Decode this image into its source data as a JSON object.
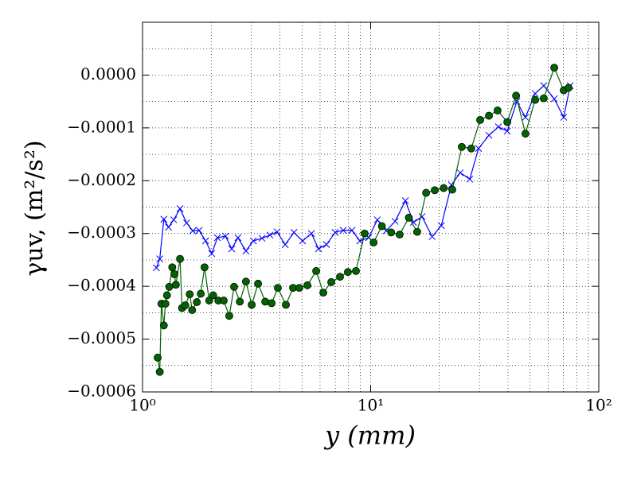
{
  "chart_data": {
    "type": "line",
    "xlabel": "y (mm)",
    "ylabel": "γuv, (m²/s²)",
    "xscale": "log",
    "xlim": [
      1,
      100
    ],
    "xticks": [
      {
        "value": 1,
        "label": "10⁰"
      },
      {
        "value": 10,
        "label": "10¹"
      },
      {
        "value": 100,
        "label": "10²"
      }
    ],
    "ylim": [
      -0.0006,
      0.0001
    ],
    "yticks": [
      {
        "value": -0.0006,
        "label": "−0.0006"
      },
      {
        "value": -0.0005,
        "label": "−0.0005"
      },
      {
        "value": -0.0004,
        "label": "−0.0004"
      },
      {
        "value": -0.0003,
        "label": "−0.0003"
      },
      {
        "value": -0.0002,
        "label": "−0.0002"
      },
      {
        "value": -0.0001,
        "label": "−0.0001"
      },
      {
        "value": 0,
        "label": "0.0000"
      }
    ],
    "grid": true,
    "series": [
      {
        "color": "#0000ff",
        "marker": "x",
        "x": [
          1.15,
          1.19,
          1.24,
          1.3,
          1.37,
          1.46,
          1.56,
          1.66,
          1.77,
          1.89,
          2.01,
          2.13,
          2.31,
          2.46,
          2.62,
          2.84,
          3.06,
          3.34,
          3.62,
          3.89,
          4.22,
          4.61,
          5.03,
          5.5,
          5.91,
          6.4,
          6.99,
          7.58,
          8.28,
          8.97,
          9.8,
          10.7,
          11.7,
          12.8,
          14.2,
          15.4,
          16.8,
          18.6,
          20.4,
          22.6,
          24.7,
          27.2,
          29.7,
          33.0,
          36.3,
          39.7,
          43.7,
          47.7,
          52.6,
          57.4,
          63.8,
          70.2,
          74.9
        ],
        "values": [
          -0.000365,
          -0.000348,
          -0.000273,
          -0.000288,
          -0.000274,
          -0.000253,
          -0.00028,
          -0.000295,
          -0.000294,
          -0.000314,
          -0.000338,
          -0.000308,
          -0.000305,
          -0.000329,
          -0.000308,
          -0.000333,
          -0.000314,
          -0.000309,
          -0.000303,
          -0.000297,
          -0.000321,
          -0.000298,
          -0.000314,
          -0.0003,
          -0.000329,
          -0.000321,
          -0.000298,
          -0.000294,
          -0.000294,
          -0.000314,
          -0.000308,
          -0.000274,
          -0.000295,
          -0.000277,
          -0.000238,
          -0.000279,
          -0.000268,
          -0.000306,
          -0.000285,
          -0.000208,
          -0.000185,
          -0.000197,
          -0.000139,
          -0.000114,
          -9.8e-05,
          -0.000106,
          -5e-05,
          -8e-05,
          -3.5e-05,
          -2e-05,
          -4.5e-05,
          -8e-05,
          -2e-05
        ]
      },
      {
        "color": "#006400",
        "marker": "o",
        "x": [
          1.165,
          1.19,
          1.21,
          1.24,
          1.26,
          1.28,
          1.31,
          1.35,
          1.38,
          1.4,
          1.46,
          1.49,
          1.54,
          1.61,
          1.65,
          1.73,
          1.8,
          1.87,
          1.96,
          2.04,
          2.15,
          2.27,
          2.4,
          2.52,
          2.67,
          2.84,
          3.01,
          3.21,
          3.45,
          3.68,
          3.92,
          4.25,
          4.57,
          4.87,
          5.28,
          5.77,
          6.2,
          6.72,
          7.34,
          7.95,
          8.62,
          9.41,
          10.3,
          11.2,
          12.3,
          13.4,
          14.7,
          16.0,
          17.5,
          19.1,
          20.9,
          22.8,
          25.1,
          27.6,
          30.2,
          33.0,
          36.0,
          39.7,
          43.4,
          47.7,
          52.6,
          57.4,
          63.8,
          70.2,
          73.7
        ],
        "values": [
          -0.000535,
          -0.000562,
          -0.000433,
          -0.000474,
          -0.000433,
          -0.000417,
          -0.000401,
          -0.000364,
          -0.000377,
          -0.000397,
          -0.000348,
          -0.000441,
          -0.000436,
          -0.000415,
          -0.000445,
          -0.00043,
          -0.000414,
          -0.000364,
          -0.000427,
          -0.000417,
          -0.000427,
          -0.000427,
          -0.000456,
          -0.000401,
          -0.000429,
          -0.000391,
          -0.000435,
          -0.000395,
          -0.000429,
          -0.000432,
          -0.000403,
          -0.000435,
          -0.000403,
          -0.000403,
          -0.000398,
          -0.000371,
          -0.000412,
          -0.000392,
          -0.000382,
          -0.000373,
          -0.000371,
          -0.0003,
          -0.000317,
          -0.000286,
          -0.000298,
          -0.000302,
          -0.00027,
          -0.000297,
          -0.000223,
          -0.000218,
          -0.000214,
          -0.000217,
          -0.000136,
          -0.000139,
          -8.5e-05,
          -7.7e-05,
          -6.7e-05,
          -8.9e-05,
          -3.9e-05,
          -0.000111,
          -4.7e-05,
          -4.4e-05,
          1.4e-05,
          -2.9e-05,
          -2.4e-05
        ]
      }
    ]
  }
}
